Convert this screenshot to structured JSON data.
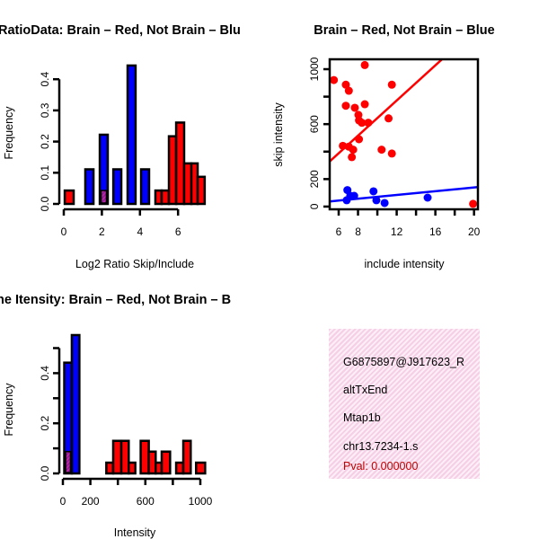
{
  "colors": {
    "brain": "#ff0000",
    "not_brain": "#0000ff",
    "overlap": "#9a1a9a",
    "pval": "#c00000",
    "info_bg": "#f6cfe6"
  },
  "chart_data": [
    {
      "type": "bar",
      "title": "RatioData: Brain – Red, Not Brain – Blu",
      "xlabel": "Log2 Ratio Skip/Include",
      "ylabel": "Frequency",
      "xticks": [
        "0",
        "2",
        "4",
        "6"
      ],
      "xtick_values": [
        0,
        2,
        4,
        6
      ],
      "yticks": [
        "0.0",
        "0.1",
        "0.2",
        "0.3",
        "0.4"
      ],
      "ytick_values": [
        0,
        0.1,
        0.2,
        0.3,
        0.4
      ],
      "bars": [
        {
          "x0": 0.05,
          "x1": 0.52,
          "value": 0.043,
          "series": "brain"
        },
        {
          "x0": 1.13,
          "x1": 1.56,
          "value": 0.111,
          "series": "not_brain"
        },
        {
          "x0": 1.89,
          "x1": 2.31,
          "value": 0.222,
          "series": "not_brain",
          "overlap": 0.043
        },
        {
          "x0": 2.6,
          "x1": 3.02,
          "value": 0.111,
          "series": "not_brain"
        },
        {
          "x0": 3.35,
          "x1": 3.77,
          "value": 0.444,
          "series": "not_brain"
        },
        {
          "x0": 4.06,
          "x1": 4.48,
          "value": 0.111,
          "series": "not_brain"
        },
        {
          "x0": 4.81,
          "x1": 5.14,
          "value": 0.043,
          "series": "brain"
        },
        {
          "x0": 5.14,
          "x1": 5.52,
          "value": 0.043,
          "series": "brain"
        },
        {
          "x0": 5.52,
          "x1": 5.9,
          "value": 0.217,
          "series": "brain"
        },
        {
          "x0": 5.9,
          "x1": 6.32,
          "value": 0.261,
          "series": "brain"
        },
        {
          "x0": 6.32,
          "x1": 6.7,
          "value": 0.13,
          "series": "brain"
        },
        {
          "x0": 6.7,
          "x1": 7.03,
          "value": 0.13,
          "series": "brain"
        },
        {
          "x0": 7.03,
          "x1": 7.4,
          "value": 0.087,
          "series": "brain"
        }
      ]
    },
    {
      "type": "scatter",
      "title": "Brain – Red, Not Brain – Blue",
      "xlabel": "include intensity",
      "ylabel": "skip intensity",
      "xlim": [
        5.07,
        20.4
      ],
      "ylim": [
        -20,
        1072
      ],
      "xticks": [
        "6",
        "8",
        "12",
        "16",
        "20"
      ],
      "xtick_values": [
        6,
        8,
        12,
        16,
        20
      ],
      "xminor": [
        10,
        14,
        18
      ],
      "yticks": [
        "0",
        "200",
        "600",
        "1000"
      ],
      "ytick_values": [
        0,
        200,
        600,
        1000
      ],
      "yminor": [
        400,
        800
      ],
      "series": [
        {
          "name": "brain",
          "points": [
            [
              5.5,
              921
            ],
            [
              6.74,
              887
            ],
            [
              7.05,
              843
            ],
            [
              8.7,
              1030
            ],
            [
              11.5,
              887
            ],
            [
              6.74,
              734
            ],
            [
              7.67,
              719
            ],
            [
              8.7,
              745
            ],
            [
              8.04,
              667
            ],
            [
              8.1,
              627
            ],
            [
              8.4,
              610
            ],
            [
              9.06,
              610
            ],
            [
              11.16,
              642
            ],
            [
              8.1,
              490
            ],
            [
              6.43,
              442
            ],
            [
              7.05,
              436
            ],
            [
              7.5,
              414
            ],
            [
              7.36,
              360
            ],
            [
              10.44,
              414
            ],
            [
              11.5,
              386
            ],
            [
              19.9,
              20
            ]
          ],
          "fit": {
            "intercept": 4,
            "slope": 64
          }
        },
        {
          "name": "not_brain",
          "points": [
            [
              6.9,
              120
            ],
            [
              6.83,
              46
            ],
            [
              7.2,
              78
            ],
            [
              7.6,
              78
            ],
            [
              9.6,
              111
            ],
            [
              9.9,
              46
            ],
            [
              10.75,
              26
            ],
            [
              15.2,
              65
            ]
          ],
          "fit": {
            "intercept": 3,
            "slope": 6.8
          }
        }
      ]
    },
    {
      "type": "bar",
      "title": "ne Itensity: Brain – Red, Not Brain – B",
      "xlabel": "Intensity",
      "ylabel": "Frequency",
      "xticks": [
        "0",
        "200",
        "600",
        "1000"
      ],
      "xtick_values": [
        0,
        200,
        600,
        1000
      ],
      "xminor": [
        400,
        800
      ],
      "yticks": [
        "0.0",
        "0.2",
        "0.4"
      ],
      "ytick_values": [
        0,
        0.2,
        0.4
      ],
      "yminor": [
        0.1,
        0.3,
        0.5
      ],
      "bars": [
        {
          "x0": 10,
          "x1": 65,
          "value": 0.442,
          "series": "not_brain",
          "overlap": 0.087
        },
        {
          "x0": 65,
          "x1": 120,
          "value": 0.552,
          "series": "not_brain"
        },
        {
          "x0": 316,
          "x1": 366,
          "value": 0.043,
          "series": "brain"
        },
        {
          "x0": 366,
          "x1": 425,
          "value": 0.13,
          "series": "brain"
        },
        {
          "x0": 425,
          "x1": 479,
          "value": 0.13,
          "series": "brain"
        },
        {
          "x0": 479,
          "x1": 527,
          "value": 0.043,
          "series": "brain"
        },
        {
          "x0": 566,
          "x1": 625,
          "value": 0.13,
          "series": "brain"
        },
        {
          "x0": 625,
          "x1": 675,
          "value": 0.087,
          "series": "brain"
        },
        {
          "x0": 675,
          "x1": 719,
          "value": 0.043,
          "series": "brain"
        },
        {
          "x0": 719,
          "x1": 780,
          "value": 0.087,
          "series": "brain"
        },
        {
          "x0": 824,
          "x1": 876,
          "value": 0.043,
          "series": "brain"
        },
        {
          "x0": 876,
          "x1": 930,
          "value": 0.13,
          "series": "brain"
        },
        {
          "x0": 969,
          "x1": 1035,
          "value": 0.043,
          "series": "brain"
        }
      ]
    }
  ],
  "info": {
    "id": "G6875897@J917623_R",
    "event_type": "altTxEnd",
    "gene": "Mtap1b",
    "location": "chr13.7234-1.s",
    "pval": "Pval: 0.000000"
  }
}
